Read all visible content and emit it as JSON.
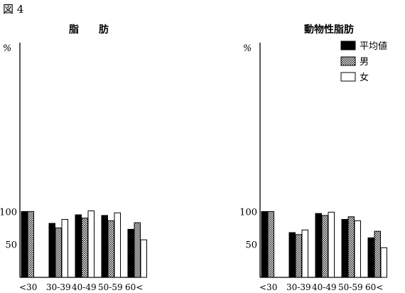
{
  "figure_label": "図 4",
  "chart_data": [
    {
      "type": "bar",
      "title": "脂　　肪",
      "unit": "%",
      "yticks": [
        100,
        50
      ],
      "ylim": [
        0,
        120
      ],
      "categories": [
        "<30",
        "30-39",
        "40-49",
        "50-59",
        "60<"
      ],
      "category_labels": [
        "<30",
        "30-39",
        "40-49",
        "50-59",
        "60<"
      ],
      "series": [
        {
          "key": "mean",
          "values": [
            100,
            82,
            95,
            94,
            73
          ]
        },
        {
          "key": "male",
          "values": [
            100,
            75,
            90,
            86,
            83
          ]
        },
        {
          "key": "female",
          "values": [
            null,
            88,
            101,
            98,
            57
          ]
        }
      ],
      "grid": false
    },
    {
      "type": "bar",
      "title": "動物性脂肪",
      "unit": "%",
      "yticks": [
        100,
        50
      ],
      "ylim": [
        0,
        120
      ],
      "categories": [
        "<30",
        "30-39",
        "40-49",
        "50-59",
        "60<"
      ],
      "category_labels": [
        "<30",
        "30-39",
        "40-49",
        "50-59",
        "60<"
      ],
      "series": [
        {
          "key": "mean",
          "name": "平均値",
          "values": [
            100,
            68,
            97,
            88,
            60
          ]
        },
        {
          "key": "male",
          "name": "男",
          "values": [
            100,
            65,
            94,
            92,
            70
          ]
        },
        {
          "key": "female",
          "name": "女",
          "values": [
            null,
            72,
            99,
            86,
            45
          ]
        }
      ],
      "legend": {
        "placement": "top-right"
      },
      "grid": false
    }
  ],
  "colors": {
    "mean": "#000000",
    "male": "#8c8c8c",
    "female": "#ffffff",
    "axis": "#000000"
  }
}
